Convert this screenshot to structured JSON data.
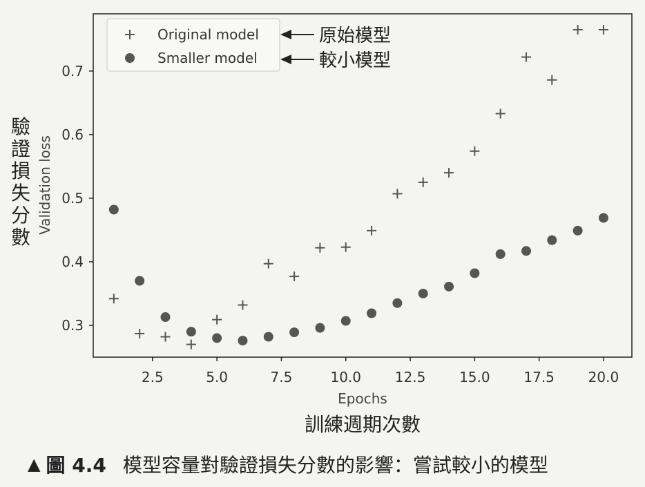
{
  "chart_data": {
    "type": "scatter",
    "xlabel": "Epochs",
    "ylabel": "Validation loss",
    "xlabel_annotation": "訓練週期次數",
    "ylabel_annotation": "驗證損失分數",
    "xlim": [
      0.2,
      21.1
    ],
    "ylim": [
      0.25,
      0.79
    ],
    "xticks": [
      "2.5",
      "5.0",
      "7.5",
      "10.0",
      "12.5",
      "15.0",
      "17.5",
      "20.0"
    ],
    "yticks": [
      "0.3",
      "0.4",
      "0.5",
      "0.6",
      "0.7"
    ],
    "legend_position": "top-left",
    "series": [
      {
        "name": "Original model",
        "annotation": "原始模型",
        "marker": "plus",
        "color": "#555555",
        "x": [
          1,
          2,
          3,
          4,
          5,
          6,
          7,
          8,
          9,
          10,
          11,
          12,
          13,
          14,
          15,
          16,
          17,
          18,
          19,
          20
        ],
        "y": [
          0.342,
          0.287,
          0.282,
          0.27,
          0.309,
          0.332,
          0.397,
          0.377,
          0.422,
          0.423,
          0.449,
          0.507,
          0.525,
          0.54,
          0.574,
          0.633,
          0.722,
          0.686,
          0.765,
          0.765
        ]
      },
      {
        "name": "Smaller model",
        "annotation": "較小模型",
        "marker": "circle",
        "color": "#555555",
        "x": [
          1,
          2,
          3,
          4,
          5,
          6,
          7,
          8,
          9,
          10,
          11,
          12,
          13,
          14,
          15,
          16,
          17,
          18,
          19,
          20
        ],
        "y": [
          0.482,
          0.37,
          0.313,
          0.29,
          0.28,
          0.276,
          0.282,
          0.289,
          0.296,
          0.307,
          0.319,
          0.335,
          0.35,
          0.361,
          0.382,
          0.412,
          0.417,
          0.434,
          0.449,
          0.469
        ]
      }
    ]
  },
  "caption": {
    "marker": "▲",
    "figure": "圖 4.4",
    "text": "模型容量對驗證損失分數的影響：嘗試較小的模型"
  }
}
